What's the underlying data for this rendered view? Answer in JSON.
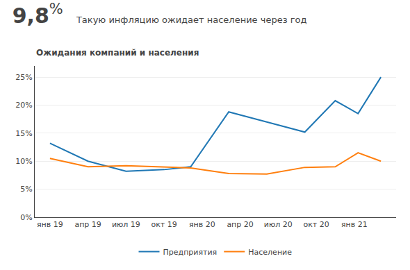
{
  "chart_data": {
    "type": "line",
    "title": "9,8",
    "annotations": [
      "%",
      "Такую инфляцию ожидает население через год"
    ],
    "subtitle": "Ожидания компаний и населения",
    "x": [
      0,
      1,
      2,
      3,
      3.7,
      4.7,
      5.7,
      6.7,
      7.5,
      8.1,
      8.7
    ],
    "series": [
      {
        "name": "Предприятия",
        "values": [
          13.2,
          10.0,
          8.2,
          8.5,
          9.0,
          18.8,
          17.0,
          15.2,
          20.8,
          18.5,
          25.0
        ]
      },
      {
        "name": "Население",
        "values": [
          10.5,
          9.0,
          9.2,
          9.0,
          8.8,
          7.8,
          7.7,
          8.9,
          9.0,
          11.5,
          10.0
        ]
      }
    ],
    "xlim": [
      -0.4,
      9.1
    ],
    "xticks": [
      {
        "value": 0,
        "label": "янв 19"
      },
      {
        "value": 1,
        "label": "апр 19"
      },
      {
        "value": 2,
        "label": "июл 19"
      },
      {
        "value": 3,
        "label": "окт 19"
      },
      {
        "value": 4,
        "label": "янв 20"
      },
      {
        "value": 5,
        "label": "апр 20"
      },
      {
        "value": 6,
        "label": "июл 20"
      },
      {
        "value": 7,
        "label": "окт 20"
      },
      {
        "value": 8,
        "label": "янв 21"
      }
    ],
    "ylim": [
      0,
      27
    ],
    "yticks": [
      {
        "value": 0,
        "label": "0%"
      },
      {
        "value": 5,
        "label": "5%"
      },
      {
        "value": 10,
        "label": "10%"
      },
      {
        "value": 15,
        "label": "15%"
      },
      {
        "value": 20,
        "label": "20%"
      },
      {
        "value": 25,
        "label": "25%"
      }
    ],
    "grid": true,
    "legend": "bottom"
  }
}
